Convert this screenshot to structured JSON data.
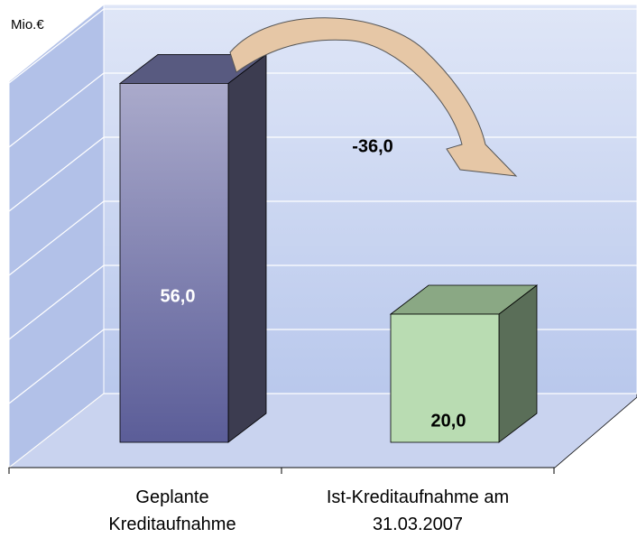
{
  "chart_data": {
    "type": "bar3d",
    "y_axis_label": "Mio.€",
    "categories": [
      "Geplante Kreditaufnahme",
      "Ist-Kreditaufnahme am 31.03.2007"
    ],
    "values": [
      56,
      20
    ],
    "value_labels": [
      "56,0",
      "20,0"
    ],
    "colors": [
      "#7476aa",
      "#b9dcb2"
    ],
    "annotation": "-36,0",
    "ylim": [
      0,
      60
    ],
    "yticks": [
      0,
      10,
      20,
      30,
      40,
      50,
      60
    ],
    "grid": true
  }
}
